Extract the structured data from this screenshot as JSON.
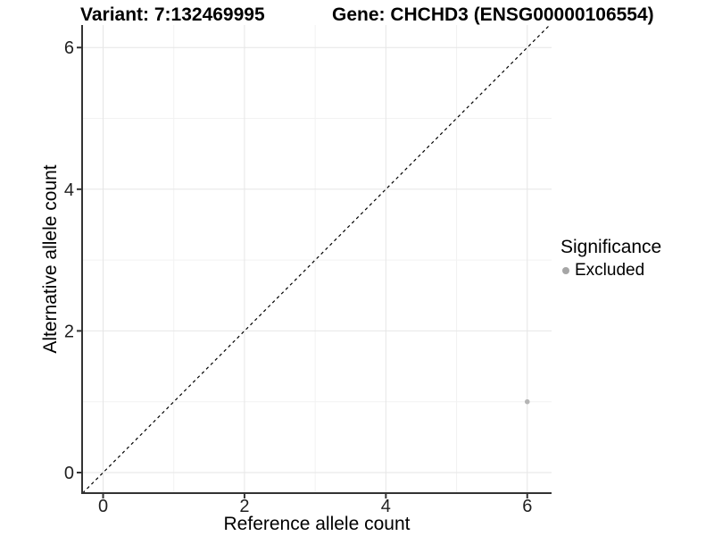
{
  "header": {
    "variant_title": "Variant: 7:132469995",
    "gene_title": "Gene: CHCHD3 (ENSG00000106554)"
  },
  "chart_data": {
    "type": "scatter",
    "xlabel": "Reference allele count",
    "ylabel": "Alternative allele count",
    "xlim": [
      -0.297,
      6.344
    ],
    "ylim": [
      -0.29,
      6.318
    ],
    "x_major_ticks": [
      0,
      2,
      4,
      6
    ],
    "x_minor_ticks": [
      1,
      3,
      5
    ],
    "y_major_ticks": [
      0,
      2,
      4,
      6
    ],
    "y_minor_ticks": [
      1,
      3,
      5
    ],
    "grid": true,
    "reference_line": {
      "type": "identity",
      "style": "dashed",
      "color": "#000000"
    },
    "series": [
      {
        "name": "Excluded",
        "color": "#b5b5b5",
        "points": [
          {
            "x": 6,
            "y": 1
          }
        ]
      }
    ],
    "legend": {
      "title": "Significance",
      "position": "right",
      "items": [
        {
          "label": "Excluded",
          "color": "#a6a6a6"
        }
      ]
    }
  },
  "colors": {
    "grid_major": "#e6e6e6",
    "grid_minor": "#f2f2f2",
    "axis_line": "#333333",
    "tick_label": "#1f1f1f",
    "background": "#ffffff"
  }
}
